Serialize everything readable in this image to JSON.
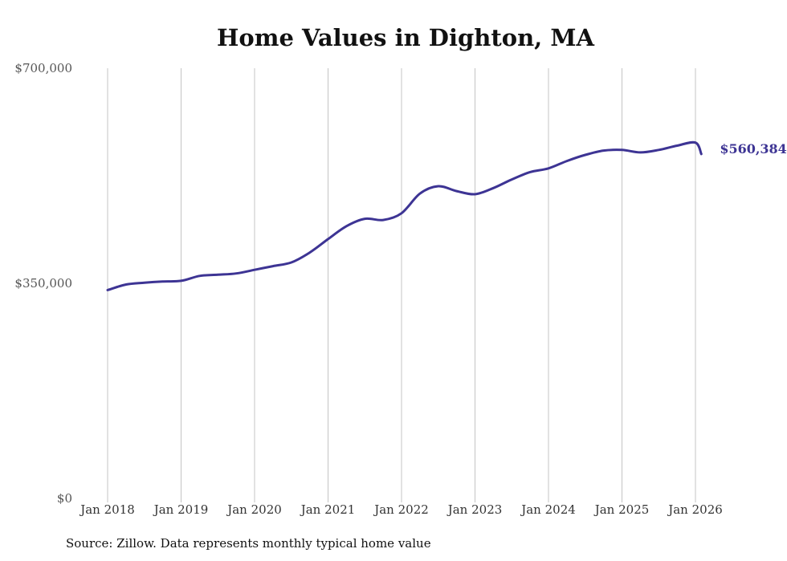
{
  "colors": {
    "series": "#3d3494",
    "grid": "#c4c4c4",
    "text": "#333333"
  },
  "source_note": "Source: Zillow. Data represents monthly typical home value",
  "chart_data": {
    "type": "line",
    "title": "Home Values in Dighton, MA",
    "xlabel": "",
    "ylabel": "",
    "ylim": [
      0,
      700000
    ],
    "yticks": [
      0,
      350000,
      700000
    ],
    "ytick_labels": [
      "$0",
      "$350,000",
      "$700,000"
    ],
    "xlim": [
      2018,
      2026.08
    ],
    "xticks": [
      2018,
      2019,
      2020,
      2021,
      2022,
      2023,
      2024,
      2025,
      2026
    ],
    "xtick_labels": [
      "Jan 2018",
      "Jan 2019",
      "Jan 2020",
      "Jan 2021",
      "Jan 2022",
      "Jan 2023",
      "Jan 2024",
      "Jan 2025",
      "Jan 2026"
    ],
    "grid": "vertical",
    "end_label": "$560,384",
    "series": [
      {
        "name": "Typical home value",
        "x": [
          2018.0,
          2018.25,
          2018.5,
          2018.75,
          2019.0,
          2019.25,
          2019.5,
          2019.75,
          2020.0,
          2020.25,
          2020.5,
          2020.75,
          2021.0,
          2021.25,
          2021.5,
          2021.75,
          2022.0,
          2022.25,
          2022.5,
          2022.75,
          2023.0,
          2023.25,
          2023.5,
          2023.75,
          2024.0,
          2024.25,
          2024.5,
          2024.75,
          2025.0,
          2025.25,
          2025.5,
          2025.75,
          2026.0,
          2026.08
        ],
        "y": [
          339000,
          348000,
          351000,
          353000,
          354000,
          362000,
          364000,
          366000,
          372000,
          378000,
          384000,
          400000,
          422000,
          443000,
          455000,
          453000,
          464000,
          496000,
          508000,
          500000,
          495000,
          505000,
          519000,
          531000,
          537000,
          549000,
          559000,
          566000,
          567000,
          563000,
          567000,
          574000,
          579000,
          560384
        ]
      }
    ]
  }
}
